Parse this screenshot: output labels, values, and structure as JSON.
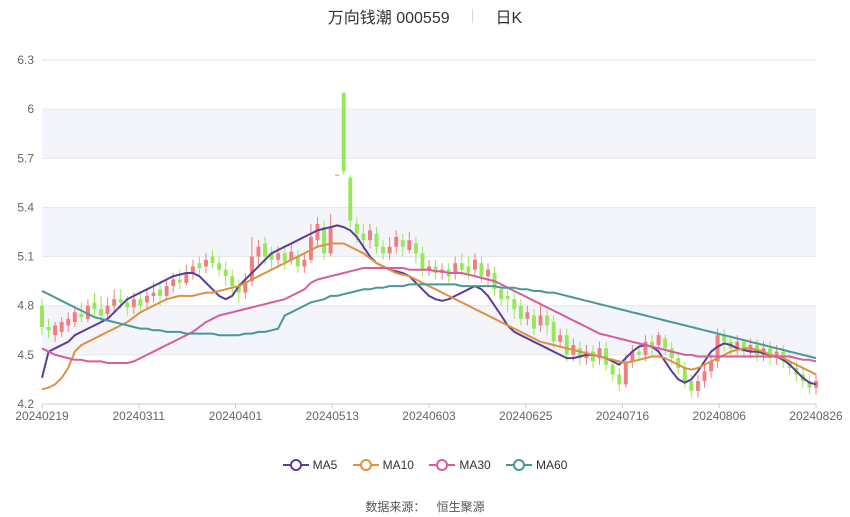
{
  "header": {
    "title": "万向钱潮 000559",
    "period": "日K"
  },
  "source": {
    "label": "数据来源：",
    "name": "恒生聚源"
  },
  "colors": {
    "up": "#ef7f7f",
    "down": "#96e85a",
    "ma5": "#5b3c96",
    "ma10": "#dd9143",
    "ma30": "#d65d9e",
    "ma60": "#4a9797"
  },
  "chart_data": {
    "type": "candlestick",
    "title": "万向钱潮 000559",
    "period": "日K",
    "ylim": [
      4.2,
      6.3
    ],
    "yticks": [
      "6.3",
      "6",
      "5.7",
      "5.4",
      "5.1",
      "4.8",
      "4.5",
      "4.2"
    ],
    "xticks": [
      "20240219",
      "20240311",
      "20240401",
      "20240513",
      "20240603",
      "20240625",
      "20240716",
      "20240806",
      "20240826"
    ],
    "legend": [
      "MA5",
      "MA10",
      "MA30",
      "MA60"
    ],
    "grid": true,
    "candles": [
      [
        4.8,
        4.67,
        4.84,
        4.62
      ],
      [
        4.67,
        4.65,
        4.72,
        4.6
      ],
      [
        4.62,
        4.68,
        4.7,
        4.58
      ],
      [
        4.64,
        4.7,
        4.73,
        4.61
      ],
      [
        4.68,
        4.72,
        4.76,
        4.64
      ],
      [
        4.7,
        4.76,
        4.8,
        4.67
      ],
      [
        4.75,
        4.73,
        4.82,
        4.7
      ],
      [
        4.72,
        4.8,
        4.84,
        4.7
      ],
      [
        4.82,
        4.78,
        4.88,
        4.74
      ],
      [
        4.78,
        4.74,
        4.86,
        4.69
      ],
      [
        4.75,
        4.8,
        4.85,
        4.72
      ],
      [
        4.8,
        4.84,
        4.9,
        4.77
      ],
      [
        4.84,
        4.82,
        4.9,
        4.78
      ],
      [
        4.82,
        4.79,
        4.86,
        4.74
      ],
      [
        4.79,
        4.84,
        4.88,
        4.75
      ],
      [
        4.84,
        4.8,
        4.89,
        4.77
      ],
      [
        4.82,
        4.86,
        4.9,
        4.78
      ],
      [
        4.86,
        4.88,
        4.94,
        4.82
      ],
      [
        4.9,
        4.86,
        4.95,
        4.8
      ],
      [
        4.86,
        4.92,
        4.96,
        4.83
      ],
      [
        4.92,
        4.96,
        5.0,
        4.88
      ],
      [
        4.96,
        4.94,
        5.02,
        4.9
      ],
      [
        4.94,
        5.0,
        5.05,
        4.92
      ],
      [
        5.0,
        5.04,
        5.08,
        4.96
      ],
      [
        5.06,
        5.03,
        5.1,
        4.99
      ],
      [
        5.04,
        5.08,
        5.12,
        5.0
      ],
      [
        5.1,
        5.06,
        5.14,
        5.03
      ],
      [
        5.06,
        5.02,
        5.1,
        4.98
      ],
      [
        5.02,
        4.98,
        5.07,
        4.92
      ],
      [
        4.98,
        4.92,
        5.02,
        4.86
      ],
      [
        4.92,
        4.88,
        4.96,
        4.82
      ],
      [
        4.88,
        4.95,
        5.0,
        4.84
      ],
      [
        4.95,
        5.1,
        5.22,
        4.92
      ],
      [
        5.1,
        5.16,
        5.2,
        5.04
      ],
      [
        5.18,
        5.1,
        5.22,
        5.05
      ],
      [
        5.12,
        5.08,
        5.16,
        5.02
      ],
      [
        5.08,
        5.12,
        5.16,
        5.03
      ],
      [
        5.12,
        5.07,
        5.16,
        5.02
      ],
      [
        5.08,
        5.13,
        5.18,
        5.05
      ],
      [
        5.1,
        5.04,
        5.14,
        5.0
      ],
      [
        5.04,
        5.08,
        5.12,
        5.0
      ],
      [
        5.08,
        5.22,
        5.3,
        5.06
      ],
      [
        5.2,
        5.3,
        5.34,
        5.16
      ],
      [
        5.28,
        5.12,
        5.32,
        5.08
      ],
      [
        5.12,
        5.28,
        5.36,
        5.1
      ],
      [
        5.6,
        5.6,
        5.6,
        5.6
      ],
      [
        6.1,
        5.62,
        6.1,
        5.6
      ],
      [
        5.58,
        5.32,
        5.6,
        5.28
      ],
      [
        5.3,
        5.24,
        5.34,
        5.18
      ],
      [
        5.24,
        5.2,
        5.3,
        5.14
      ],
      [
        5.2,
        5.26,
        5.3,
        5.15
      ],
      [
        5.24,
        5.16,
        5.28,
        5.12
      ],
      [
        5.16,
        5.12,
        5.2,
        5.08
      ],
      [
        5.12,
        5.16,
        5.22,
        5.08
      ],
      [
        5.16,
        5.22,
        5.26,
        5.12
      ],
      [
        5.2,
        5.16,
        5.24,
        5.1
      ],
      [
        5.14,
        5.2,
        5.25,
        5.12
      ],
      [
        5.18,
        5.12,
        5.22,
        5.06
      ],
      [
        5.12,
        5.02,
        5.16,
        4.98
      ],
      [
        5.02,
        5.04,
        5.08,
        4.98
      ],
      [
        5.04,
        5.0,
        5.08,
        4.96
      ],
      [
        5.0,
        5.02,
        5.06,
        4.96
      ],
      [
        5.02,
        4.98,
        5.06,
        4.94
      ],
      [
        5.0,
        5.06,
        5.1,
        4.96
      ],
      [
        5.06,
        5.02,
        5.12,
        4.98
      ],
      [
        5.04,
        5.0,
        5.1,
        4.96
      ],
      [
        5.02,
        5.08,
        5.12,
        4.98
      ],
      [
        5.06,
        4.98,
        5.1,
        4.94
      ],
      [
        4.98,
        5.02,
        5.06,
        4.92
      ],
      [
        5.0,
        4.9,
        5.04,
        4.86
      ],
      [
        4.9,
        4.84,
        4.94,
        4.8
      ],
      [
        4.86,
        4.84,
        4.9,
        4.76
      ],
      [
        4.84,
        4.78,
        4.88,
        4.72
      ],
      [
        4.8,
        4.72,
        4.84,
        4.68
      ],
      [
        4.72,
        4.76,
        4.8,
        4.68
      ],
      [
        4.74,
        4.66,
        4.78,
        4.62
      ],
      [
        4.68,
        4.74,
        4.82,
        4.64
      ],
      [
        4.74,
        4.68,
        4.78,
        4.62
      ],
      [
        4.7,
        4.58,
        4.74,
        4.54
      ],
      [
        4.58,
        4.62,
        4.66,
        4.54
      ],
      [
        4.62,
        4.5,
        4.66,
        4.46
      ],
      [
        4.5,
        4.56,
        4.6,
        4.46
      ],
      [
        4.54,
        4.48,
        4.58,
        4.44
      ],
      [
        4.48,
        4.52,
        4.56,
        4.44
      ],
      [
        4.52,
        4.46,
        4.56,
        4.42
      ],
      [
        4.48,
        4.54,
        4.58,
        4.44
      ],
      [
        4.54,
        4.44,
        4.58,
        4.4
      ],
      [
        4.44,
        4.38,
        4.48,
        4.34
      ],
      [
        4.38,
        4.32,
        4.42,
        4.28
      ],
      [
        4.32,
        4.46,
        4.5,
        4.3
      ],
      [
        4.46,
        4.52,
        4.56,
        4.42
      ],
      [
        4.52,
        4.5,
        4.58,
        4.46
      ],
      [
        4.5,
        4.58,
        4.62,
        4.46
      ],
      [
        4.58,
        4.54,
        4.62,
        4.5
      ],
      [
        4.56,
        4.62,
        4.64,
        4.52
      ],
      [
        4.6,
        4.54,
        4.62,
        4.5
      ],
      [
        4.54,
        4.48,
        4.58,
        4.44
      ],
      [
        4.48,
        4.42,
        4.52,
        4.38
      ],
      [
        4.42,
        4.34,
        4.46,
        4.3
      ],
      [
        4.34,
        4.28,
        4.38,
        4.24
      ],
      [
        4.28,
        4.34,
        4.38,
        4.24
      ],
      [
        4.34,
        4.4,
        4.44,
        4.3
      ],
      [
        4.4,
        4.46,
        4.5,
        4.36
      ],
      [
        4.46,
        4.62,
        4.66,
        4.42
      ],
      [
        4.62,
        4.58,
        4.66,
        4.52
      ],
      [
        4.58,
        4.54,
        4.62,
        4.5
      ],
      [
        4.54,
        4.58,
        4.62,
        4.5
      ],
      [
        4.58,
        4.52,
        4.6,
        4.48
      ],
      [
        4.52,
        4.56,
        4.6,
        4.48
      ],
      [
        4.56,
        4.5,
        4.6,
        4.46
      ],
      [
        4.5,
        4.54,
        4.58,
        4.46
      ],
      [
        4.54,
        4.48,
        4.58,
        4.44
      ],
      [
        4.48,
        4.52,
        4.56,
        4.44
      ],
      [
        4.52,
        4.46,
        4.56,
        4.42
      ],
      [
        4.46,
        4.42,
        4.5,
        4.38
      ],
      [
        4.42,
        4.38,
        4.46,
        4.34
      ],
      [
        4.38,
        4.34,
        4.42,
        4.3
      ],
      [
        4.34,
        4.3,
        4.38,
        4.26
      ],
      [
        4.3,
        4.34,
        4.38,
        4.26
      ]
    ],
    "series": [
      {
        "name": "MA5",
        "color": "#5b3c96",
        "values": [
          4.36,
          4.52,
          4.54,
          4.56,
          4.58,
          4.62,
          4.64,
          4.66,
          4.68,
          4.7,
          4.72,
          4.76,
          4.8,
          4.84,
          4.86,
          4.88,
          4.9,
          4.92,
          4.94,
          4.96,
          4.98,
          4.99,
          5.0,
          5.0,
          4.98,
          4.94,
          4.9,
          4.86,
          4.84,
          4.86,
          4.92,
          4.96,
          5.0,
          5.04,
          5.08,
          5.12,
          5.14,
          5.16,
          5.18,
          5.2,
          5.22,
          5.24,
          5.26,
          5.27,
          5.28,
          5.29,
          5.28,
          5.26,
          5.22,
          5.16,
          5.1,
          5.06,
          5.04,
          5.02,
          5.01,
          5.0,
          4.98,
          4.94,
          4.9,
          4.86,
          4.84,
          4.83,
          4.84,
          4.86,
          4.88,
          4.9,
          4.92,
          4.9,
          4.86,
          4.8,
          4.74,
          4.68,
          4.64,
          4.62,
          4.6,
          4.58,
          4.56,
          4.54,
          4.52,
          4.5,
          4.48,
          4.48,
          4.49,
          4.5,
          4.5,
          4.49,
          4.48,
          4.46,
          4.44,
          4.48,
          4.52,
          4.55,
          4.56,
          4.55,
          4.52,
          4.46,
          4.4,
          4.35,
          4.33,
          4.35,
          4.4,
          4.46,
          4.52,
          4.55,
          4.57,
          4.56,
          4.54,
          4.53,
          4.52,
          4.52,
          4.51,
          4.5,
          4.49,
          4.47,
          4.44,
          4.4,
          4.36,
          4.33,
          4.32
        ]
      },
      {
        "name": "MA10",
        "color": "#dd9143",
        "values": [
          4.29,
          4.3,
          4.32,
          4.36,
          4.42,
          4.52,
          4.56,
          4.58,
          4.6,
          4.62,
          4.64,
          4.66,
          4.68,
          4.7,
          4.73,
          4.76,
          4.78,
          4.8,
          4.82,
          4.84,
          4.85,
          4.86,
          4.86,
          4.86,
          4.87,
          4.88,
          4.88,
          4.89,
          4.9,
          4.91,
          4.92,
          4.94,
          4.96,
          4.98,
          5.0,
          5.02,
          5.04,
          5.06,
          5.08,
          5.1,
          5.12,
          5.14,
          5.16,
          5.17,
          5.18,
          5.18,
          5.18,
          5.16,
          5.14,
          5.12,
          5.09,
          5.06,
          5.04,
          5.02,
          5.0,
          4.99,
          4.98,
          4.96,
          4.94,
          4.92,
          4.9,
          4.88,
          4.86,
          4.84,
          4.82,
          4.8,
          4.78,
          4.76,
          4.74,
          4.72,
          4.7,
          4.68,
          4.66,
          4.64,
          4.62,
          4.6,
          4.58,
          4.57,
          4.56,
          4.55,
          4.54,
          4.53,
          4.52,
          4.51,
          4.5,
          4.49,
          4.48,
          4.47,
          4.46,
          4.45,
          4.46,
          4.47,
          4.48,
          4.49,
          4.49,
          4.48,
          4.46,
          4.44,
          4.42,
          4.41,
          4.42,
          4.44,
          4.46,
          4.48,
          4.5,
          4.52,
          4.53,
          4.54,
          4.54,
          4.53,
          4.52,
          4.5,
          4.49,
          4.48,
          4.46,
          4.44,
          4.42,
          4.4,
          4.38
        ]
      },
      {
        "name": "MA30",
        "color": "#d65d9e",
        "values": [
          4.54,
          4.52,
          4.5,
          4.49,
          4.48,
          4.47,
          4.47,
          4.46,
          4.46,
          4.46,
          4.45,
          4.45,
          4.45,
          4.45,
          4.46,
          4.48,
          4.5,
          4.52,
          4.54,
          4.56,
          4.58,
          4.6,
          4.62,
          4.64,
          4.67,
          4.7,
          4.72,
          4.74,
          4.75,
          4.76,
          4.77,
          4.78,
          4.79,
          4.8,
          4.81,
          4.82,
          4.83,
          4.84,
          4.86,
          4.88,
          4.9,
          4.94,
          4.96,
          4.97,
          4.98,
          4.99,
          5.0,
          5.01,
          5.02,
          5.03,
          5.03,
          5.03,
          5.03,
          5.03,
          5.03,
          5.03,
          5.02,
          5.02,
          5.02,
          5.02,
          5.01,
          5.01,
          5.0,
          5.0,
          5.0,
          4.99,
          4.98,
          4.97,
          4.96,
          4.95,
          4.93,
          4.91,
          4.89,
          4.87,
          4.85,
          4.83,
          4.81,
          4.79,
          4.77,
          4.75,
          4.73,
          4.71,
          4.69,
          4.67,
          4.65,
          4.63,
          4.62,
          4.61,
          4.6,
          4.59,
          4.58,
          4.57,
          4.56,
          4.55,
          4.54,
          4.53,
          4.52,
          4.51,
          4.5,
          4.5,
          4.49,
          4.49,
          4.49,
          4.49,
          4.49,
          4.49,
          4.49,
          4.49,
          4.49,
          4.49,
          4.49,
          4.49,
          4.49,
          4.49,
          4.49,
          4.48,
          4.47,
          4.47,
          4.46
        ]
      },
      {
        "name": "MA60",
        "color": "#4a9797",
        "values": [
          4.89,
          4.87,
          4.85,
          4.83,
          4.81,
          4.79,
          4.77,
          4.75,
          4.73,
          4.72,
          4.71,
          4.7,
          4.69,
          4.68,
          4.67,
          4.66,
          4.66,
          4.65,
          4.65,
          4.64,
          4.64,
          4.64,
          4.63,
          4.63,
          4.63,
          4.63,
          4.63,
          4.62,
          4.62,
          4.62,
          4.62,
          4.63,
          4.63,
          4.64,
          4.64,
          4.65,
          4.66,
          4.74,
          4.76,
          4.78,
          4.8,
          4.82,
          4.83,
          4.84,
          4.86,
          4.86,
          4.87,
          4.88,
          4.89,
          4.9,
          4.9,
          4.91,
          4.91,
          4.92,
          4.92,
          4.92,
          4.93,
          4.93,
          4.93,
          4.93,
          4.93,
          4.93,
          4.93,
          4.93,
          4.92,
          4.92,
          4.92,
          4.92,
          4.92,
          4.92,
          4.91,
          4.91,
          4.91,
          4.9,
          4.9,
          4.89,
          4.89,
          4.88,
          4.88,
          4.87,
          4.86,
          4.85,
          4.84,
          4.83,
          4.82,
          4.81,
          4.8,
          4.79,
          4.78,
          4.77,
          4.76,
          4.75,
          4.74,
          4.73,
          4.72,
          4.71,
          4.7,
          4.69,
          4.68,
          4.67,
          4.66,
          4.65,
          4.64,
          4.63,
          4.62,
          4.61,
          4.6,
          4.59,
          4.58,
          4.57,
          4.56,
          4.55,
          4.54,
          4.53,
          4.52,
          4.51,
          4.5,
          4.49,
          4.48
        ]
      }
    ]
  }
}
